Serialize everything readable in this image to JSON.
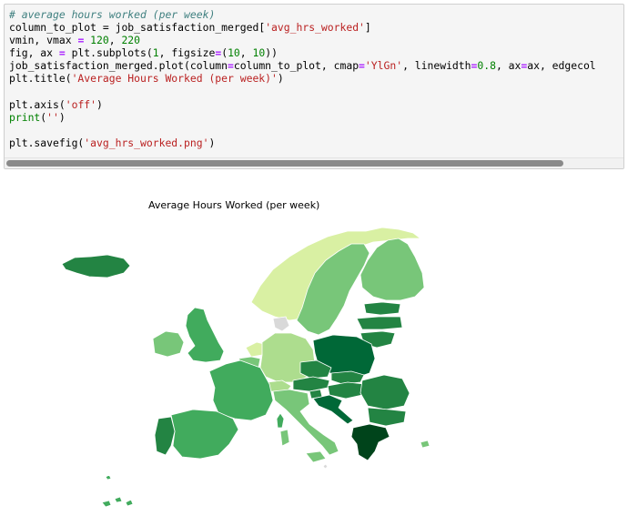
{
  "code_cell": {
    "comment": "# average hours worked (per week)",
    "line1_var": "column_to_plot",
    "line1_assign": " = job_satisfaction_merged[",
    "line1_str": "'avg_hrs_worked'",
    "line1_end": "]",
    "line2_a": "vmin, vmax ",
    "line2_eq": "=",
    "line2_n1": " 120",
    "line2_c": ", ",
    "line2_n2": "220",
    "line3_a": "fig, ax ",
    "line3_eq": "=",
    "line3_b": " plt.subplots(",
    "line3_n1": "1",
    "line3_c": ", figsize",
    "line3_eq2": "=",
    "line3_d": "(",
    "line3_n2": "10",
    "line3_e": ", ",
    "line3_n3": "10",
    "line3_f": "))",
    "line4_a": "job_satisfaction_merged.plot(column",
    "line4_eq1": "=",
    "line4_b": "column_to_plot, cmap",
    "line4_eq2": "=",
    "line4_str": "'YlGn'",
    "line4_c": ", linewidth",
    "line4_eq3": "=",
    "line4_n": "0.8",
    "line4_d": ", ax",
    "line4_eq4": "=",
    "line4_e": "ax, edgecol",
    "line5_a": "plt.title(",
    "line5_str": "'Average Hours Worked (per week)'",
    "line5_b": ")",
    "line6_a": "plt.axis(",
    "line6_str": "'off'",
    "line6_b": ")",
    "line7_fn": "print",
    "line7_a": "(",
    "line7_str": "''",
    "line7_b": ")",
    "line8_a": "plt.savefig(",
    "line8_str": "'avg_hrs_worked.png'",
    "line8_b": ")"
  },
  "plot": {
    "title": "Average Hours Worked (per week)"
  },
  "colors": {
    "darkest": "#00441b",
    "dark": "#006837",
    "mid_dark": "#238443",
    "mid": "#41ab5d",
    "mid_light": "#78c679",
    "light": "#addd8e",
    "lightest": "#d9f0a3",
    "no_data": "#d9d9d9"
  }
}
